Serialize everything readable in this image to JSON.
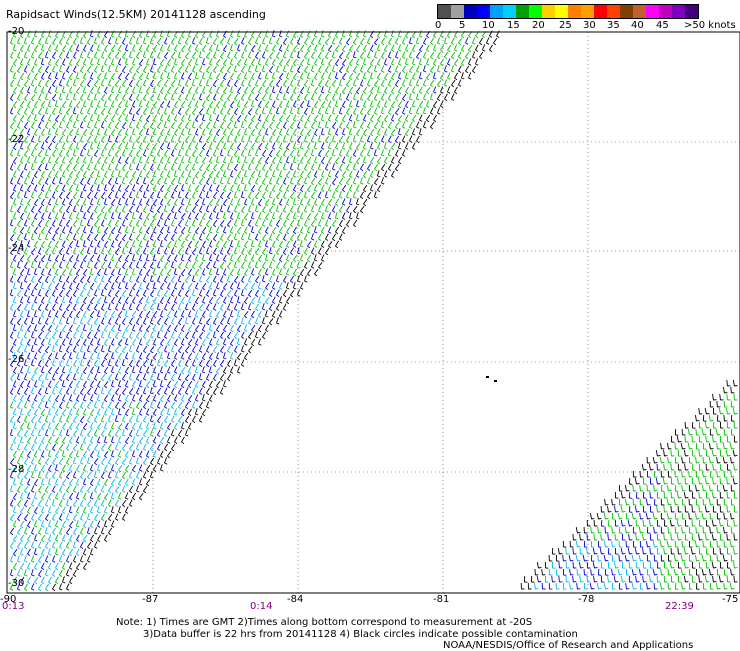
{
  "title": "Rapidsact Winds(12.5KM) 20141128 ascending",
  "colorbar": {
    "colors": [
      "#505050",
      "#a0a0a0",
      "#0000c0",
      "#0000ff",
      "#00a0ff",
      "#00d0ff",
      "#00a000",
      "#00ff00",
      "#ffd000",
      "#ffff00",
      "#ff8000",
      "#ffa000",
      "#ff0000",
      "#ff4000",
      "#804000",
      "#c06030",
      "#ff00ff",
      "#c000c0",
      "#8000c0",
      "#400080"
    ],
    "labels": [
      "0",
      "5",
      "10",
      "15",
      "20",
      "25",
      "30",
      "35",
      "40",
      "45",
      ">50 knots"
    ]
  },
  "axes": {
    "lat_labels": [
      "-20",
      "-22",
      "-24",
      "-26",
      "-28",
      "-30"
    ],
    "lon_labels": [
      "-90",
      "-87",
      "-84",
      "-81",
      "-78",
      "-75"
    ]
  },
  "times": {
    "left": "0:13",
    "mid": "0:14",
    "right": "22:39"
  },
  "notes": {
    "line1": "Note: 1) Times are GMT 2)Times along bottom correspond to measurement at -20S",
    "line2": "3)Data buffer is 22 hrs from 20141128 4) Black circles indicate possible contamination",
    "line3": "NOAA/NESDIS/Office of Research and Applications"
  }
}
